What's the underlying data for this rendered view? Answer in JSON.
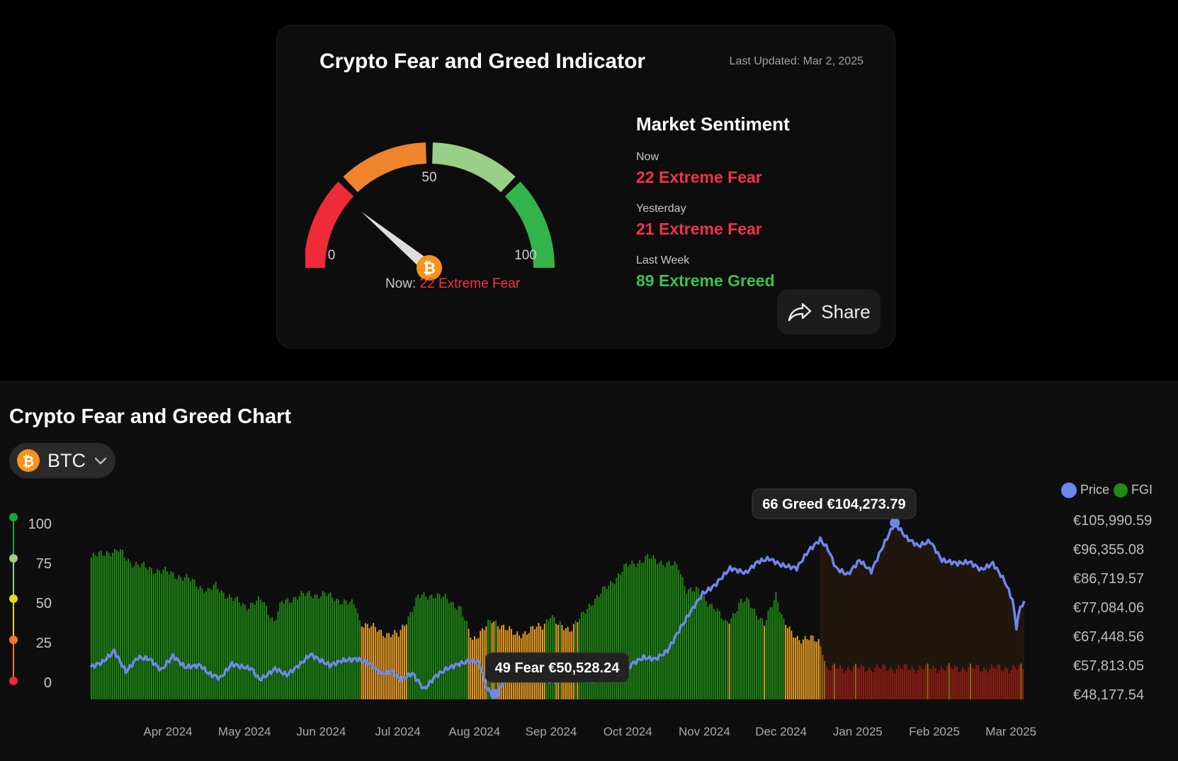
{
  "indicator": {
    "title": "Crypto Fear and Greed Indicator",
    "last_updated": "Last Updated: Mar 2, 2025",
    "gauge": {
      "tick_min": "0",
      "tick_mid": "50",
      "tick_max": "100",
      "value": 22,
      "now_prefix": "Now: ",
      "now_value": "22 Extreme Fear",
      "colors": [
        "#ef2b3a",
        "#f0842a",
        "#9acf87",
        "#32b44a"
      ]
    },
    "sentiment": {
      "heading": "Market Sentiment",
      "now_label": "Now",
      "now_value": "22 Extreme Fear",
      "now_color": "#f1334b",
      "yesterday_label": "Yesterday",
      "yesterday_value": "21 Extreme Fear",
      "yesterday_color": "#f1334b",
      "week_label": "Last Week",
      "week_value": "89 Extreme Greed",
      "week_color": "#3fc04f"
    },
    "share_label": "Share"
  },
  "chart_section": {
    "title": "Crypto Fear and Greed Chart",
    "coin": "BTC",
    "coin_icon": "bitcoin-icon"
  },
  "chart_data": {
    "type": "bar",
    "x_labels": [
      "Apr 2024",
      "May 2024",
      "Jun 2024",
      "Jul 2024",
      "Aug 2024",
      "Sep 2024",
      "Oct 2024",
      "Nov 2024",
      "Dec 2024",
      "Jan 2025",
      "Feb 2025",
      "Mar 2025"
    ],
    "fgi_ticks": [
      "100",
      "75",
      "50",
      "25",
      "0"
    ],
    "price_ticks": [
      "€105,990.59",
      "€96,355.08",
      "€86,719.57",
      "€77,084.06",
      "€67,448.56",
      "€57,813.05",
      "€48,177.54"
    ],
    "fgi_range": [
      0,
      100
    ],
    "price_range": [
      48177.54,
      105990.59
    ],
    "legend": [
      "Price",
      "FGI"
    ],
    "legend_position": "top-right",
    "colors": {
      "price": "#6e86ee",
      "greed": "#1f8c14",
      "neutral": "#f4a422",
      "fear": "#e21818"
    },
    "fgi_series": {
      "name": "FGI",
      "knots": [
        [
          0,
          100
        ],
        [
          8,
          104
        ],
        [
          14,
          105
        ],
        [
          20,
          97
        ],
        [
          28,
          93
        ],
        [
          38,
          90
        ],
        [
          50,
          85
        ],
        [
          60,
          76
        ],
        [
          64,
          80
        ],
        [
          72,
          71
        ],
        [
          80,
          66
        ],
        [
          88,
          70
        ],
        [
          94,
          55
        ],
        [
          98,
          68
        ],
        [
          106,
          73
        ],
        [
          112,
          74
        ],
        [
          120,
          74
        ],
        [
          128,
          70
        ],
        [
          136,
          66
        ],
        [
          138,
          55
        ],
        [
          144,
          51
        ],
        [
          150,
          47
        ],
        [
          158,
          45
        ],
        [
          162,
          56
        ],
        [
          168,
          72
        ],
        [
          176,
          74
        ],
        [
          184,
          70
        ],
        [
          190,
          64
        ],
        [
          192,
          55
        ],
        [
          196,
          42
        ],
        [
          200,
          48
        ],
        [
          206,
          55
        ],
        [
          212,
          52
        ],
        [
          218,
          45
        ],
        [
          224,
          48
        ],
        [
          232,
          52
        ],
        [
          236,
          60
        ],
        [
          240,
          52
        ],
        [
          246,
          50
        ],
        [
          252,
          58
        ],
        [
          258,
          70
        ],
        [
          266,
          80
        ],
        [
          274,
          93
        ],
        [
          286,
          100
        ],
        [
          296,
          96
        ],
        [
          302,
          93
        ],
        [
          306,
          78
        ],
        [
          312,
          76
        ],
        [
          320,
          65
        ],
        [
          326,
          54
        ],
        [
          330,
          60
        ],
        [
          334,
          68
        ],
        [
          338,
          70
        ],
        [
          346,
          52
        ],
        [
          352,
          75
        ],
        [
          356,
          55
        ],
        [
          360,
          46
        ],
        [
          364,
          43
        ],
        [
          368,
          43
        ],
        [
          374,
          41
        ],
        [
          376,
          35
        ],
        [
          378,
          22
        ]
      ]
    },
    "price_series": {
      "name": "Price",
      "knots": [
        [
          0,
          59000
        ],
        [
          6,
          60500
        ],
        [
          12,
          64000
        ],
        [
          18,
          57500
        ],
        [
          24,
          62000
        ],
        [
          30,
          61500
        ],
        [
          36,
          58000
        ],
        [
          42,
          62500
        ],
        [
          48,
          59000
        ],
        [
          56,
          59500
        ],
        [
          60,
          57000
        ],
        [
          66,
          55500
        ],
        [
          72,
          60000
        ],
        [
          76,
          59200
        ],
        [
          82,
          58500
        ],
        [
          86,
          55000
        ],
        [
          90,
          56500
        ],
        [
          94,
          58500
        ],
        [
          100,
          56500
        ],
        [
          108,
          60500
        ],
        [
          112,
          63000
        ],
        [
          116,
          61500
        ],
        [
          122,
          59500
        ],
        [
          128,
          61000
        ],
        [
          136,
          61500
        ],
        [
          142,
          60200
        ],
        [
          148,
          57000
        ],
        [
          154,
          57500
        ],
        [
          158,
          55000
        ],
        [
          164,
          57000
        ],
        [
          170,
          52000
        ],
        [
          176,
          56200
        ],
        [
          182,
          58600
        ],
        [
          188,
          60000
        ],
        [
          194,
          61000
        ],
        [
          198,
          60500
        ],
        [
          202,
          52000
        ],
        [
          206,
          50528
        ],
        [
          212,
          55000
        ],
        [
          218,
          56500
        ],
        [
          224,
          57000
        ],
        [
          230,
          55500
        ],
        [
          236,
          54500
        ],
        [
          242,
          56500
        ],
        [
          250,
          57000
        ],
        [
          256,
          55000
        ],
        [
          262,
          57500
        ],
        [
          270,
          55000
        ],
        [
          276,
          60000
        ],
        [
          282,
          62000
        ],
        [
          288,
          61500
        ],
        [
          294,
          64000
        ],
        [
          300,
          70500
        ],
        [
          306,
          76500
        ],
        [
          312,
          82000
        ],
        [
          318,
          84500
        ],
        [
          326,
          90000
        ],
        [
          334,
          88500
        ],
        [
          340,
          92000
        ],
        [
          346,
          93000
        ],
        [
          352,
          91000
        ],
        [
          360,
          90000
        ],
        [
          366,
          95500
        ],
        [
          372,
          99000
        ],
        [
          376,
          96000
        ],
        [
          380,
          90000
        ],
        [
          386,
          88000
        ],
        [
          392,
          92500
        ],
        [
          398,
          89000
        ],
        [
          404,
          97000
        ],
        [
          410,
          104273
        ],
        [
          416,
          99500
        ],
        [
          422,
          97000
        ],
        [
          428,
          98500
        ],
        [
          434,
          92500
        ],
        [
          442,
          91500
        ],
        [
          448,
          92000
        ],
        [
          454,
          89500
        ],
        [
          460,
          91500
        ],
        [
          466,
          86000
        ],
        [
          470,
          80000
        ],
        [
          472,
          71500
        ],
        [
          474,
          78000
        ],
        [
          476,
          79000
        ]
      ]
    },
    "tooltips": [
      {
        "text": "66 Greed €104,273.79",
        "point_x": 410,
        "price": 104273.79
      },
      {
        "text": "49 Fear €50,528.24",
        "point_x": 206,
        "price": 50528.24
      }
    ]
  }
}
